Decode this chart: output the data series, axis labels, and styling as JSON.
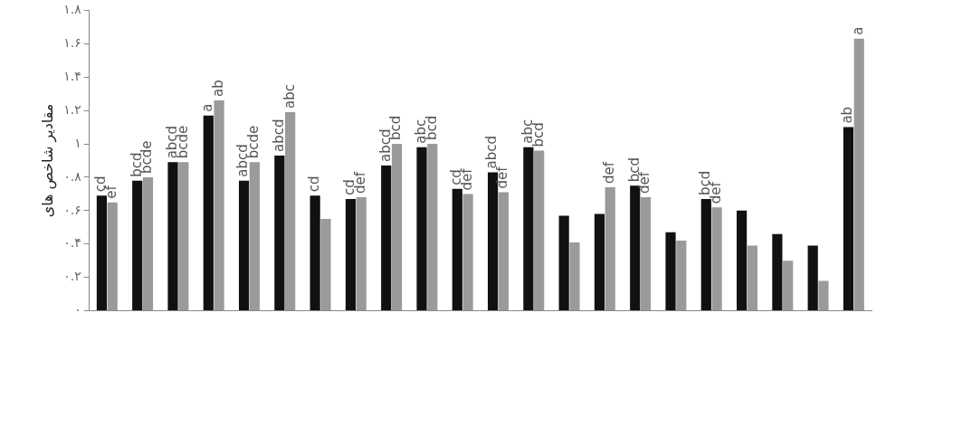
{
  "chart_data": {
    "type": "bar",
    "ylabel": "مقادیر شاخص های",
    "categories": [
      null,
      null,
      null,
      null,
      null,
      null,
      null,
      null,
      null,
      null,
      null,
      null,
      null,
      null,
      null,
      null,
      null,
      null,
      null,
      null,
      null,
      null
    ],
    "series": [
      {
        "color": "#111111",
        "values": [
          0.69,
          0.78,
          0.89,
          1.17,
          0.78,
          0.93,
          0.69,
          0.67,
          0.87,
          0.98,
          0.73,
          0.83,
          0.98,
          0.57,
          0.58,
          0.75,
          0.47,
          0.67,
          0.6,
          0.46,
          0.39,
          1.1
        ],
        "value_labels": [
          "cd",
          "bcd",
          "abcd",
          "a",
          "abcd",
          "abcd",
          "cd",
          "cd",
          "abcd",
          "abc",
          "cd",
          "abcd",
          "abc",
          null,
          null,
          "bcd",
          null,
          "bcd",
          null,
          null,
          null,
          "ab"
        ]
      },
      {
        "color": "#9a9a9a",
        "values": [
          0.65,
          0.8,
          0.89,
          1.26,
          0.89,
          1.19,
          0.55,
          0.68,
          1.0,
          1.0,
          0.7,
          0.71,
          0.96,
          0.41,
          0.74,
          0.68,
          0.42,
          0.62,
          0.39,
          0.3,
          0.18,
          1.63
        ],
        "value_labels": [
          "ef",
          "bcde",
          "bcde",
          "ab",
          "bcde",
          "abc",
          null,
          "def",
          "bcd",
          "bcd",
          "def",
          "def",
          "bcd",
          null,
          "def",
          "def",
          null,
          "def",
          null,
          null,
          null,
          "a"
        ]
      }
    ],
    "ylim": [
      0,
      1.8
    ],
    "yticks": [
      {
        "value": 0,
        "label": "۰"
      },
      {
        "value": 0.2,
        "label": "۰.۲"
      },
      {
        "value": 0.4,
        "label": "۰.۴"
      },
      {
        "value": 0.6,
        "label": "۰.۶"
      },
      {
        "value": 0.8,
        "label": "۰.۸"
      },
      {
        "value": 1,
        "label": "۱"
      },
      {
        "value": 1.2,
        "label": "۱.۲"
      },
      {
        "value": 1.4,
        "label": "۱.۴"
      },
      {
        "value": 1.6,
        "label": "۱.۶"
      },
      {
        "value": 1.8,
        "label": "۱.۸"
      }
    ],
    "grid": false
  }
}
